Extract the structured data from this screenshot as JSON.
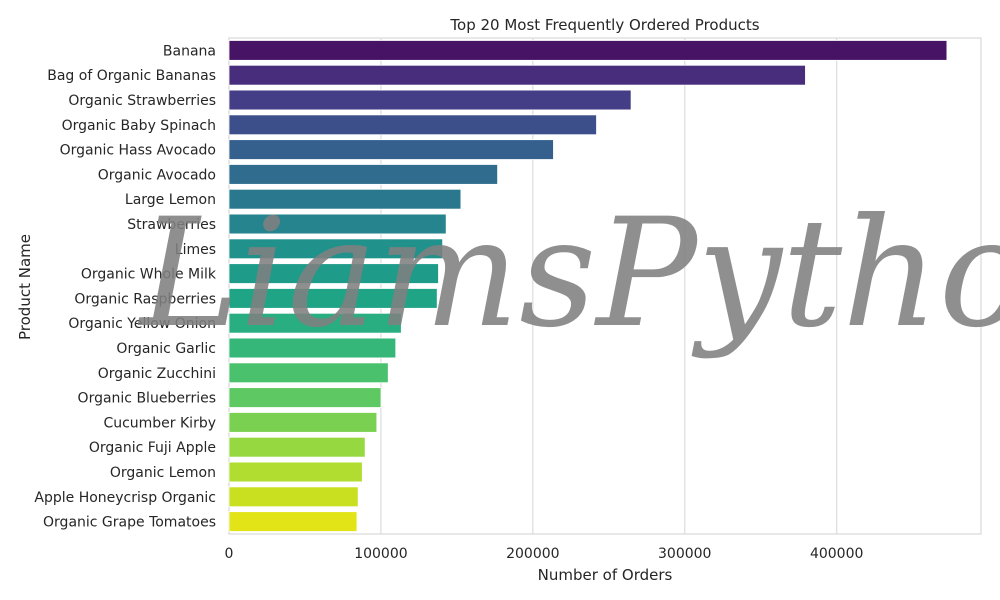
{
  "chart_data": {
    "type": "bar",
    "orientation": "horizontal",
    "title": "Top 20 Most Frequently Ordered Products",
    "xlabel": "Number of Orders",
    "ylabel": "Product Name",
    "xlim": [
      0,
      495000
    ],
    "xticks": [
      0,
      100000,
      200000,
      300000,
      400000
    ],
    "xtick_labels": [
      "0",
      "100000",
      "200000",
      "300000",
      "400000"
    ],
    "grid": true,
    "palette": "viridis",
    "categories": [
      "Banana",
      "Bag of Organic Bananas",
      "Organic Strawberries",
      "Organic Baby Spinach",
      "Organic Hass Avocado",
      "Organic Avocado",
      "Large Lemon",
      "Strawberries",
      "Limes",
      "Organic Whole Milk",
      "Organic Raspberries",
      "Organic Yellow Onion",
      "Organic Garlic",
      "Organic Zucchini",
      "Organic Blueberries",
      "Cucumber Kirby",
      "Organic Fuji Apple",
      "Organic Lemon",
      "Apple Honeycrisp Organic",
      "Organic Grape Tomatoes"
    ],
    "values": [
      472565,
      379450,
      264683,
      241921,
      213584,
      176815,
      152657,
      142951,
      140627,
      137905,
      137057,
      113426,
      109778,
      104823,
      100060,
      97315,
      89632,
      87746,
      85020,
      84255
    ],
    "colors": [
      "#471365",
      "#472d7b",
      "#433e85",
      "#3c4f8a",
      "#355f8d",
      "#2f6c8e",
      "#2a788e",
      "#25848e",
      "#21918c",
      "#1e9c89",
      "#20a486",
      "#28ae80",
      "#35b779",
      "#4ac16d",
      "#5ec962",
      "#7ad151",
      "#95d840",
      "#b0dd2f",
      "#c8e020",
      "#e2e418"
    ]
  },
  "watermark": {
    "text": "LiamsPython"
  }
}
